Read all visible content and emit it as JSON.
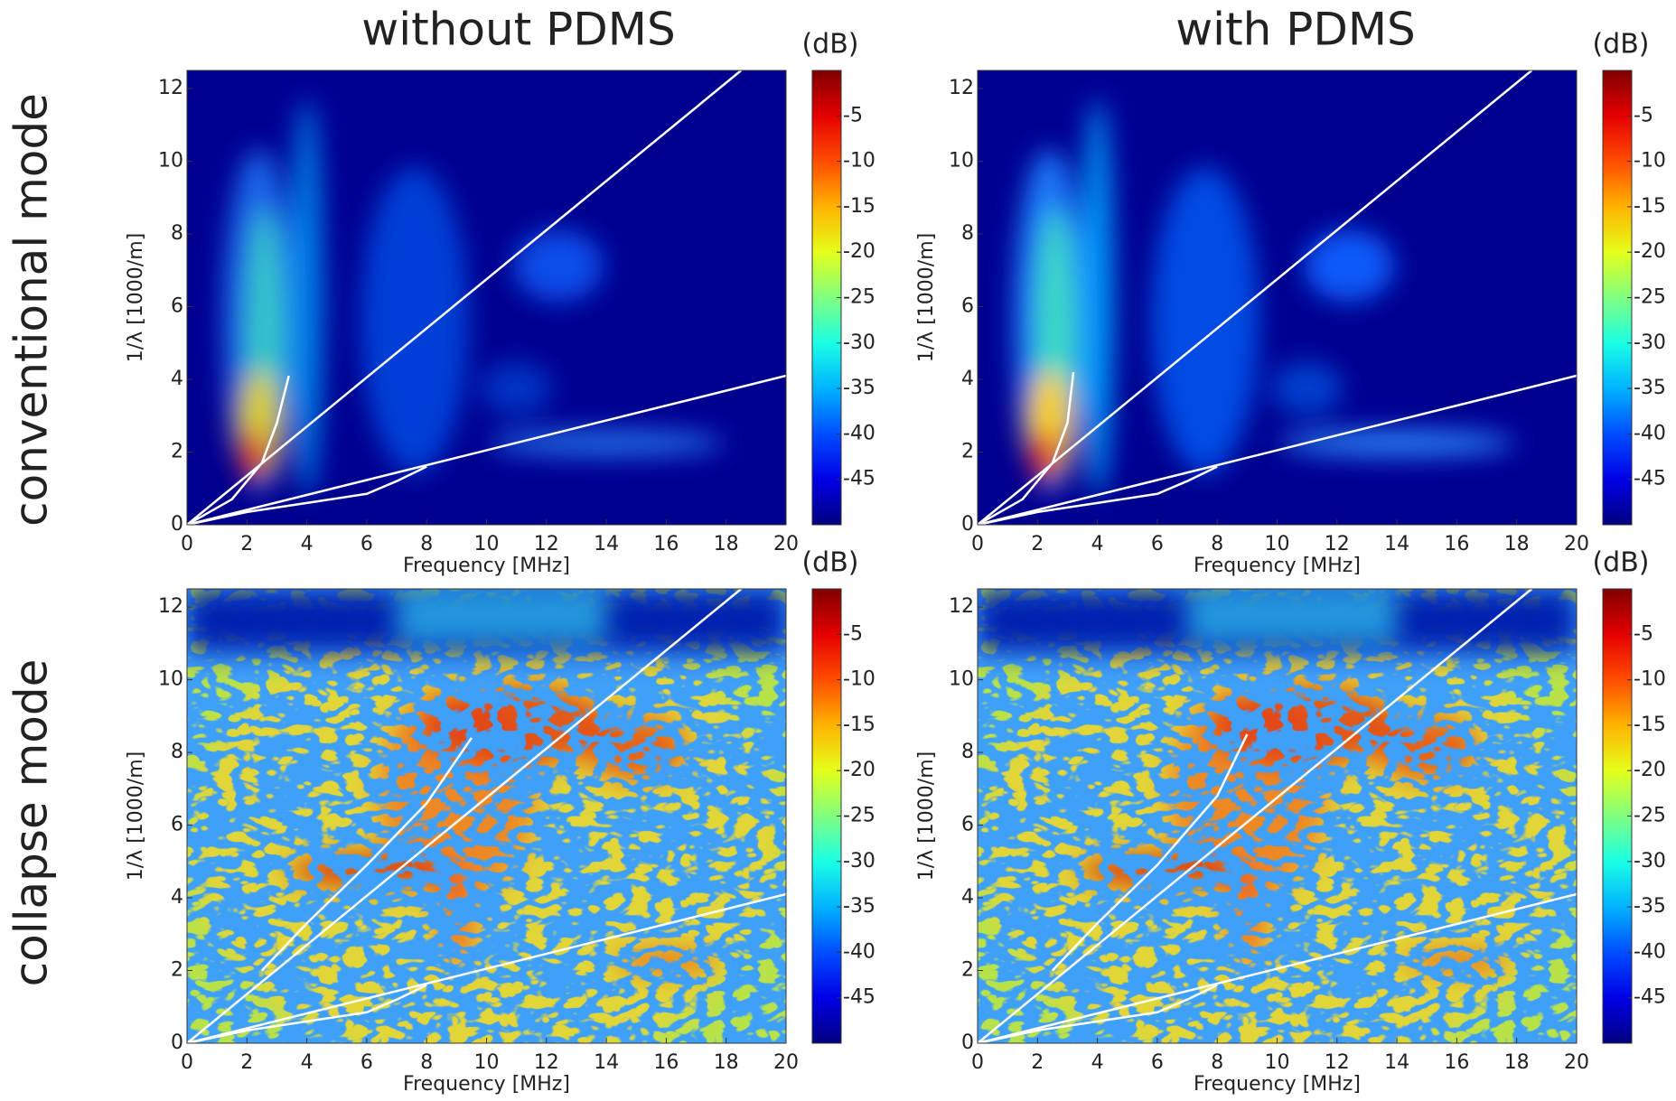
{
  "figure": {
    "columns": [
      "without PDMS",
      "with PDMS"
    ],
    "rows": [
      "conventional mode",
      "collapse mode"
    ]
  },
  "chart_data": [
    {
      "type": "heatmap",
      "xlabel": "Frequency [MHz]",
      "ylabel": "1/λ [1000/m]",
      "xlim": [
        0,
        20
      ],
      "ylim": [
        0,
        12.5
      ],
      "xticks": [
        0,
        2,
        4,
        6,
        8,
        10,
        12,
        14,
        16,
        18,
        20
      ],
      "yticks": [
        0,
        2,
        4,
        6,
        8,
        10,
        12
      ],
      "colorbar": {
        "label": "(dB)",
        "lim": [
          -50,
          0
        ],
        "ticks": [
          -5,
          -10,
          -15,
          -20,
          -25,
          -30,
          -35,
          -40,
          -45
        ],
        "colormap": "jet"
      },
      "series": [
        {
          "color": "#ffffff",
          "x": [
            0,
            18.5
          ],
          "values": [
            0,
            12.5
          ]
        },
        {
          "color": "#ffffff",
          "x": [
            0,
            20
          ],
          "values": [
            0,
            4.1
          ]
        },
        {
          "color": "#ffffff",
          "x": [
            0,
            2,
            4,
            6,
            7,
            8
          ],
          "values": [
            0,
            0.35,
            0.6,
            0.85,
            1.2,
            1.6
          ]
        },
        {
          "color": "#ffffff",
          "x": [
            0,
            1.5,
            2.5,
            3,
            3.4
          ],
          "values": [
            0,
            0.7,
            1.7,
            2.8,
            4.1
          ]
        }
      ]
    },
    {
      "type": "heatmap",
      "xlabel": "Frequency [MHz]",
      "ylabel": "1/λ [1000/m]",
      "xlim": [
        0,
        20
      ],
      "ylim": [
        0,
        12.5
      ],
      "xticks": [
        0,
        2,
        4,
        6,
        8,
        10,
        12,
        14,
        16,
        18,
        20
      ],
      "yticks": [
        0,
        2,
        4,
        6,
        8,
        10,
        12
      ],
      "colorbar": {
        "label": "(dB)",
        "lim": [
          -50,
          0
        ],
        "ticks": [
          -5,
          -10,
          -15,
          -20,
          -25,
          -30,
          -35,
          -40,
          -45
        ],
        "colormap": "jet"
      },
      "series": [
        {
          "color": "#ffffff",
          "x": [
            0,
            18.5
          ],
          "values": [
            0,
            12.5
          ]
        },
        {
          "color": "#ffffff",
          "x": [
            0,
            20
          ],
          "values": [
            0,
            4.1
          ]
        },
        {
          "color": "#ffffff",
          "x": [
            0,
            2,
            4,
            6,
            7,
            8
          ],
          "values": [
            0,
            0.35,
            0.6,
            0.85,
            1.2,
            1.6
          ]
        },
        {
          "color": "#ffffff",
          "x": [
            0,
            1.5,
            2.5,
            3,
            3.2
          ],
          "values": [
            0,
            0.7,
            1.7,
            2.8,
            4.2
          ]
        }
      ]
    },
    {
      "type": "heatmap",
      "xlabel": "Frequency [MHz]",
      "ylabel": "1/λ [1000/m]",
      "xlim": [
        0,
        20
      ],
      "ylim": [
        0,
        12.5
      ],
      "xticks": [
        0,
        2,
        4,
        6,
        8,
        10,
        12,
        14,
        16,
        18,
        20
      ],
      "yticks": [
        0,
        2,
        4,
        6,
        8,
        10,
        12
      ],
      "colorbar": {
        "label": "(dB)",
        "lim": [
          -50,
          0
        ],
        "ticks": [
          -5,
          -10,
          -15,
          -20,
          -25,
          -30,
          -35,
          -40,
          -45
        ],
        "colormap": "jet"
      },
      "series": [
        {
          "color": "#ffffff",
          "x": [
            0,
            18.5
          ],
          "values": [
            0,
            12.5
          ]
        },
        {
          "color": "#ffffff",
          "x": [
            0,
            20
          ],
          "values": [
            0,
            4.1
          ]
        },
        {
          "color": "#ffffff",
          "x": [
            0,
            2,
            4,
            6,
            7,
            8
          ],
          "values": [
            0,
            0.35,
            0.6,
            0.85,
            1.2,
            1.6
          ]
        },
        {
          "color": "#ffffff",
          "x": [
            2.5,
            4,
            6,
            8,
            9.5
          ],
          "values": [
            2,
            3.3,
            4.9,
            6.6,
            8.4
          ]
        }
      ]
    },
    {
      "type": "heatmap",
      "xlabel": "Frequency [MHz]",
      "ylabel": "1/λ [1000/m]",
      "xlim": [
        0,
        20
      ],
      "ylim": [
        0,
        12.5
      ],
      "xticks": [
        0,
        2,
        4,
        6,
        8,
        10,
        12,
        14,
        16,
        18,
        20
      ],
      "yticks": [
        0,
        2,
        4,
        6,
        8,
        10,
        12
      ],
      "colorbar": {
        "label": "(dB)",
        "lim": [
          -50,
          0
        ],
        "ticks": [
          -5,
          -10,
          -15,
          -20,
          -25,
          -30,
          -35,
          -40,
          -45
        ],
        "colormap": "jet"
      },
      "series": [
        {
          "color": "#ffffff",
          "x": [
            0,
            18.5
          ],
          "values": [
            0,
            12.5
          ]
        },
        {
          "color": "#ffffff",
          "x": [
            0,
            20
          ],
          "values": [
            0,
            4.1
          ]
        },
        {
          "color": "#ffffff",
          "x": [
            0,
            2,
            4,
            6,
            7,
            8
          ],
          "values": [
            0,
            0.35,
            0.6,
            0.85,
            1.2,
            1.6
          ]
        },
        {
          "color": "#ffffff",
          "x": [
            2.5,
            4,
            6,
            8,
            9
          ],
          "values": [
            2,
            3.3,
            4.9,
            6.8,
            8.5
          ]
        }
      ]
    }
  ]
}
